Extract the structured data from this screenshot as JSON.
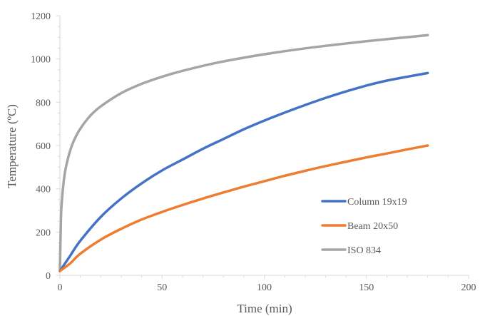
{
  "chart_data": {
    "type": "line",
    "xlabel": "Time (min)",
    "ylabel": "Temperature (ºC)",
    "xlim": [
      0,
      200
    ],
    "ylim": [
      0,
      1200
    ],
    "x_ticks": [
      "0",
      "50",
      "100",
      "150",
      "200"
    ],
    "y_ticks": [
      "0",
      "200",
      "400",
      "600",
      "800",
      "1000",
      "1200"
    ],
    "grid": false,
    "legend_position": "right",
    "series": [
      {
        "name": "Column 19x19",
        "color": "#4472C4",
        "x": [
          0,
          5,
          10,
          20,
          30,
          40,
          50,
          60,
          70,
          80,
          90,
          100,
          110,
          120,
          130,
          140,
          150,
          160,
          170,
          180
        ],
        "y": [
          20,
          90,
          160,
          270,
          355,
          425,
          485,
          535,
          585,
          630,
          675,
          715,
          752,
          787,
          820,
          850,
          877,
          900,
          918,
          935
        ]
      },
      {
        "name": "Beam 20x50",
        "color": "#ED7D31",
        "x": [
          0,
          5,
          10,
          20,
          30,
          40,
          50,
          60,
          70,
          80,
          90,
          100,
          110,
          120,
          130,
          140,
          150,
          160,
          170,
          180
        ],
        "y": [
          20,
          55,
          100,
          165,
          215,
          258,
          293,
          325,
          355,
          383,
          410,
          435,
          460,
          483,
          505,
          525,
          545,
          563,
          582,
          600
        ]
      },
      {
        "name": "ISO 834",
        "color": "#A5A5A5",
        "x": [
          0,
          0.5,
          1,
          2,
          3,
          5,
          7,
          10,
          15,
          20,
          30,
          40,
          50,
          60,
          75,
          90,
          105,
          120,
          135,
          150,
          165,
          180
        ],
        "y": [
          20,
          261,
          349,
          445,
          502,
          576,
          626,
          678,
          739,
          781,
          842,
          885,
          918,
          945,
          979,
          1006,
          1029,
          1049,
          1066,
          1082,
          1096,
          1110
        ]
      }
    ]
  }
}
